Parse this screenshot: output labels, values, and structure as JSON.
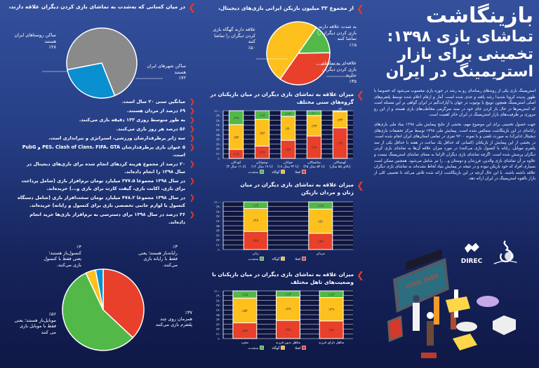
{
  "colors": {
    "red": "#e8402a",
    "yellow": "#fdc01d",
    "green": "#52b848",
    "blue": "#0a8fd0",
    "gray": "#8a8a8a",
    "accent": "#e8382a"
  },
  "header": {
    "title_line1": "بازینگاشت",
    "title_line2": "تماشای بازی ۱۳۹۸:",
    "title_line3": "تخمینی برای بازار",
    "title_line4": "استریمینگ در ایران"
  },
  "intro": {
    "p1": "استریمینگ بازی یکی از روندهای رسانه‌ای رو به رشد در حوزه بازی محسوب می‌شود که خصوصا با ظهور پدیده کرونا شدیدا رشد یافته و جدی شده است. آمار و ارقام اعلام شده توسط پلتفرم‌های اصلی استریمینگ همچون توییچ یا یوتیوب در جهان یا آپارات‌گیم در ایران گواهی بر این مسئله است که استریمرها در حال باز کردن جای خود در سبد سرگرمی مخاطب‌های بازی هستند و از این رو مروری بر ظرفیت‌های بازار استریمینگ در ایران حائز اهمیت است.",
    "p2": "جهت حصول تخمینی برای این موضوع مهم، بخشی از نتایج پیمایش ملی ۱۳۹۸ بنیاد ملی بازی‌های رایانه‌ای در این بازینگاشت منعکس شده است. پیمایش ملی ۱۳۹۸ توسط مرکز تحقیقات بازی‌های دیجیتال (دایرک) به صورت تلفنی و با نمونه ۹۲۰۰ نفری در تمامی استان‌های ایران انجام شده است. در بخشی از این پیمایش از بازیکنان (کسانی که حداقل یک ساعت در هفته با حداقل یکی از سه پلتفرم موبایل، رایانه یا کنسول بازی می‌کنند) در مورد میزان علاقه آن‌ها به تماشای بازی کردن دیگران پرسش شده است. اگرچه تماشای بازی دیگران الزاما به معنای تماشای استریمینگ نیست و علاوه بر آن تماشای بازی والدین، فرزندان و دوستان و... را نیز شامل می‌شود. همچنین ممکن است بسیاری افراد که خود بازیکن نبوده و در نتیجه در پیمایش بنیاد لحاظ نشده‌اند به تماشای بازی دیگران علاقه داشته باشند. با این حال آن‌چه در این بازینگاشت ارائه شده تلاش می‌کند تا تخمینی کلی از بازار بالقوه استریمینگ در ایران ارائه دهد."
  },
  "logos": {
    "direc": "DIREC",
    "ircg": "بنیاد ملی بازی‌های رایانه‌ای"
  },
  "illustration": {
    "screen_text": "GAME OVER"
  },
  "bullets": [
    "میانگین سنی ۲۰ سال است.",
    "۶۹ درصد از مردان هستند.",
    "به طور متوسط روزی ۱۳۲ دقیقه بازی می‌کنند.",
    "۵۶ درصد هر روز بازی می‌کنند.",
    "سه ژانر پرطرفدار‌شان ورزشی، استراتژی و تیراندازی است.",
    "۵ عنوان بازی پرطرفدارشان PES، Clash of Clans، FIFA، GTA و PubG است.",
    "۲۰ درصد از مجموع هزینه کردهای انجام شده برای بازی‌های دیجیتال در سال ۱۳۹۸ را انجام داده‌اند.",
    "در سال ۱۳۹۸ مجموعا ۳۷۷.۵ میلیارد تومان نرم‌افزار بازی (شامل پرداخت برای بازی، اکانت بازی، گیفت کارت برای بازی و...) خریده‌اند.",
    "در سال ۱۳۹۸ مجموعا ۴۷۸.۲ میلیارد تومان سخت‌افزار بازی (شامل دستگاه کنسول یا لوازم جانبی تخصصی بازی برای کنسول و رایانه) خریده‌اند.",
    "۳۶ درصد در سال ۱۳۹۸ برای دسترسی به نرم‌افزار بازی‌ها خرید انجام داده‌اند."
  ],
  "pie_location": {
    "title_pre": "در میان کسانی که ",
    "title_bold": "به‌شدت",
    "title_post": " به تماشای بازی کردن دیگران علاقه دارند،",
    "slices": [
      {
        "label": "ساکن روستاهای ایران هستند",
        "value": 28,
        "pct": "٪۲۸",
        "color": "#0a8fd0"
      },
      {
        "label": "ساکن شهرهای ایران هستند",
        "value": 72,
        "pct": "٪۷۲",
        "color": "#8a8a8a"
      }
    ]
  },
  "pie_interest": {
    "title": "از مجموع ۳۲ میلیون بازیکن ایرانی بازی‌های دیجیتال،",
    "slices": [
      {
        "label": "به شدت علاقه دارند بازی کردن دیگران را تماشا کنند",
        "value": 15,
        "pct": "٪۱۵",
        "color": "#52b848"
      },
      {
        "label": "علاقه‌ای به تماشای بازی کردن دیگران ندارند",
        "value": 35,
        "pct": "٪۳۵",
        "color": "#e8402a"
      },
      {
        "label": "علاقه دارند گهگاه بازی کردن دیگران را تماشا کنند",
        "value": 50,
        "pct": "٪۵۰",
        "color": "#fdc01d"
      }
    ]
  },
  "pie_platform": {
    "slices": [
      {
        "label": "همزمان روی چند پلتفرم بازی می‌کنند",
        "value": 37,
        "pct": "٪۳۷",
        "color": "#e8402a"
      },
      {
        "label": "موبایل‌باز هستند؛ یعنی فقط با موبایل بازی می کنند",
        "value": 56,
        "pct": "٪۵۶",
        "color": "#52b848"
      },
      {
        "label": "کنسول‌باز هستند؛ یعنی فقط با کنسول بازی می‌کنند.",
        "value": 4,
        "pct": "٪۴",
        "color": "#fdc01d"
      },
      {
        "label": "رایانه‌باز هستند؛ یعنی فقط با رایانه بازی می‌کنند.",
        "value": 3,
        "pct": "٪۳",
        "color": "#0a8fd0"
      }
    ]
  },
  "chart_data": [
    {
      "type": "bar",
      "stacked": true,
      "title": "میزان علاقه به تماشای بازی دیگران در میان بازیکنان در گروه‌های سنی مختلف",
      "categories": [
        "کودکان (۳ تا ۱۱ سال)",
        "نوجوانان (۱۲ تا ۱۷ سال)",
        "جوانان (۱۸ تا ۳۴ سال)",
        "میانسالان (۳۵ تا ۵۴ سال)",
        "کهنسالان (بالای ۵۵ سال)"
      ],
      "series": [
        {
          "name": "اصلا",
          "color": "#e8402a",
          "values": [
            19,
            26,
            38,
            47,
            64
          ]
        },
        {
          "name": "گهگاه",
          "color": "#fdc01d",
          "values": [
            52,
            56,
            50,
            43,
            34
          ]
        },
        {
          "name": "به‌شدت",
          "color": "#52b848",
          "values": [
            29,
            18,
            12,
            10,
            2
          ]
        }
      ],
      "ylim": [
        0,
        100
      ],
      "yticks": [
        "٪۰",
        "٪۱۰",
        "٪۲۰",
        "٪۳۰",
        "٪۴۰",
        "٪۵۰",
        "٪۶۰",
        "٪۷۰",
        "٪۸۰",
        "٪۹۰",
        "٪۱۰۰"
      ],
      "grid": true,
      "legend": "bottom"
    },
    {
      "type": "bar",
      "stacked": true,
      "title": "میزان علاقه به تماشای بازی دیگران در میان زنان و مردان بازیکن",
      "categories": [
        "زنان",
        "مردان"
      ],
      "series": [
        {
          "name": "اصلا",
          "color": "#e8402a",
          "values": [
            38,
            34
          ]
        },
        {
          "name": "گهگاه",
          "color": "#fdc01d",
          "values": [
            48,
            51
          ]
        },
        {
          "name": "به‌شدت",
          "color": "#52b848",
          "values": [
            14,
            15
          ]
        }
      ],
      "ylim": [
        0,
        100
      ],
      "yticks": [
        "٪۰",
        "٪۱۰",
        "٪۲۰",
        "٪۳۰",
        "٪۴۰",
        "٪۵۰",
        "٪۶۰",
        "٪۷۰",
        "٪۸۰",
        "٪۹۰",
        "٪۱۰۰"
      ],
      "grid": true,
      "legend": "bottom"
    },
    {
      "type": "bar",
      "stacked": true,
      "title": "میزان علاقه به تماشای بازی دیگران در میان بازیکنان با وضعیت‌های تاهل مختلف",
      "categories": [
        "مجرد",
        "متاهل بدون فرزند",
        "متاهل دارای فرزند"
      ],
      "series": [
        {
          "name": "اصلا",
          "color": "#e8402a",
          "values": [
            33,
            38,
            37
          ]
        },
        {
          "name": "گهگاه",
          "color": "#fdc01d",
          "values": [
            52,
            49,
            49
          ]
        },
        {
          "name": "به‌شدت",
          "color": "#52b848",
          "values": [
            15,
            13,
            14
          ]
        }
      ],
      "ylim": [
        0,
        100
      ],
      "yticks": [
        "٪۰",
        "٪۱۰",
        "٪۲۰",
        "٪۳۰",
        "٪۴۰",
        "٪۵۰",
        "٪۶۰",
        "٪۷۰",
        "٪۸۰",
        "٪۹۰",
        "٪۱۰۰"
      ],
      "grid": true,
      "legend": "bottom"
    }
  ]
}
